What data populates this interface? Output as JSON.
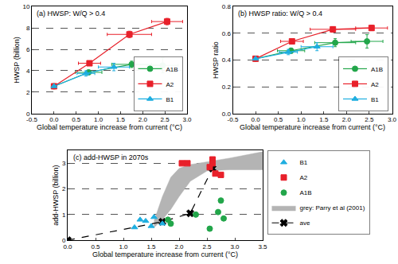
{
  "chart_data": [
    {
      "type": "line",
      "title": "(a) HWSP: W/Q > 0.4",
      "x_label": "Global temperature increase from current (°C)",
      "y_label": "HWSP (billion)",
      "xlim": [
        -0.5,
        3
      ],
      "xticks": [
        -0.5,
        {
          "value": 0,
          "label": "0.0"
        },
        0.5,
        {
          "value": 1,
          "label": "1.0"
        },
        1.5,
        {
          "value": 2,
          "label": "2.0"
        },
        2.5,
        {
          "value": 3,
          "label": "3.0"
        }
      ],
      "ylim": [
        0,
        10
      ],
      "yticks": [
        0,
        2,
        4,
        6,
        8,
        10
      ],
      "grid": "y",
      "legend": "lower right",
      "series": [
        {
          "name": "A1B",
          "color": "#22a64a",
          "marker": "circle",
          "x": [
            0,
            0.78,
            1.75,
            2.45
          ],
          "values": [
            2.55,
            3.85,
            4.6,
            4.5
          ],
          "x_err": [
            0,
            0.3,
            0.45,
            0.35
          ],
          "y_err": [
            0,
            0.2,
            0.3,
            0.7
          ]
        },
        {
          "name": "A2",
          "color": "#e8202a",
          "marker": "square",
          "x": [
            0,
            0.8,
            1.7,
            2.55
          ],
          "values": [
            2.55,
            4.7,
            7.4,
            8.6
          ],
          "x_err": [
            0,
            0.25,
            0.5,
            0.35
          ],
          "y_err": [
            0,
            0.2,
            0.3,
            0.3
          ]
        },
        {
          "name": "B1",
          "color": "#1eaee0",
          "marker": "triangle",
          "x": [
            0,
            0.72,
            1.35
          ],
          "values": [
            2.55,
            3.75,
            4.35
          ],
          "x_err": [
            0,
            0.2,
            0.35
          ],
          "y_err": [
            0,
            0.25,
            0.35
          ]
        }
      ]
    },
    {
      "type": "line",
      "title": "(b) HWSP ratio: W/Q > 0.4",
      "x_label": "Global temperature increase from current (°C)",
      "y_label": "HWSP ratio",
      "xlim": [
        -0.5,
        3
      ],
      "xticks": [
        -0.5,
        {
          "value": 0,
          "label": "0.0"
        },
        0.5,
        {
          "value": 1,
          "label": "1.0"
        },
        1.5,
        {
          "value": 2,
          "label": "2.0"
        },
        2.5,
        {
          "value": 3,
          "label": "3.0"
        }
      ],
      "ylim": [
        0,
        0.8
      ],
      "yticks": [
        {
          "value": 0,
          "label": "0.0"
        },
        0.2,
        0.4,
        0.6,
        0.8
      ],
      "grid": "y",
      "legend": "lower right",
      "series": [
        {
          "name": "A1B",
          "color": "#22a64a",
          "marker": "circle",
          "x": [
            0,
            0.78,
            1.75,
            2.45
          ],
          "values": [
            0.41,
            0.47,
            0.53,
            0.54
          ],
          "x_err": [
            0,
            0.3,
            0.45,
            0.35
          ],
          "y_err": [
            0,
            0.02,
            0.03,
            0.05
          ]
        },
        {
          "name": "A2",
          "color": "#e8202a",
          "marker": "square",
          "x": [
            0,
            0.8,
            1.7,
            2.55
          ],
          "values": [
            0.41,
            0.54,
            0.63,
            0.64
          ],
          "x_err": [
            0,
            0.25,
            0.5,
            0.35
          ],
          "y_err": [
            0,
            0.02,
            0.02,
            0.02
          ]
        },
        {
          "name": "B1",
          "color": "#1eaee0",
          "marker": "triangle",
          "x": [
            0,
            0.72,
            1.35
          ],
          "values": [
            0.41,
            0.46,
            0.5
          ],
          "x_err": [
            0,
            0.2,
            0.35
          ],
          "y_err": [
            0,
            0.02,
            0.03
          ]
        }
      ]
    },
    {
      "type": "scatter",
      "title": "(c) add-HWSP in 2070s",
      "x_label": "Global temperature increase from current (°C)",
      "y_label": "add-HWSP (billion)",
      "xlim": [
        0,
        3.5
      ],
      "xticks": [
        {
          "value": 0,
          "label": "0.0"
        },
        0.5,
        {
          "value": 1,
          "label": "1.0"
        },
        1.5,
        {
          "value": 2,
          "label": "2.0"
        },
        2.5,
        {
          "value": 3,
          "label": "3.0"
        },
        3.5
      ],
      "ylim": [
        0,
        3.5
      ],
      "yticks": [
        0,
        1,
        2,
        3
      ],
      "grid": "y",
      "legend": "right",
      "series": [
        {
          "name": "ave",
          "type": "line",
          "color": "#000000",
          "marker": "x",
          "line_style": "dashed",
          "x": [
            0,
            1.7,
            2.2,
            2.6
          ],
          "values": [
            0,
            0.72,
            1.05,
            2.8
          ]
        },
        {
          "name": "grey: Parry et al (2001)",
          "type": "band",
          "color": "#b4b4b4",
          "x": [
            1.55,
            1.7,
            1.85,
            2.0,
            2.2,
            2.5,
            2.9,
            3.5
          ],
          "lower": [
            0.5,
            0.8,
            1.2,
            1.7,
            2.3,
            2.7,
            2.75,
            2.75
          ],
          "upper": [
            0.75,
            1.7,
            2.45,
            2.8,
            2.95,
            3.05,
            3.2,
            3.45
          ]
        },
        {
          "name": "A1B",
          "color": "#22a64a",
          "marker": "circle",
          "x": [
            1.8,
            1.85,
            2.3,
            2.55,
            2.7,
            2.75,
            2.8
          ],
          "values": [
            0.8,
            0.65,
            1.0,
            0.45,
            1.1,
            1.55,
            0.85
          ]
        },
        {
          "name": "A2",
          "color": "#e8202a",
          "marker": "square",
          "x": [
            2.05,
            2.15,
            2.55,
            2.6,
            2.6,
            2.65,
            2.75
          ],
          "values": [
            3.0,
            3.0,
            2.85,
            3.15,
            3.0,
            2.6,
            2.55
          ]
        },
        {
          "name": "B1",
          "color": "#1eaee0",
          "marker": "triangle",
          "x": [
            1.2,
            1.3,
            1.4,
            1.5,
            1.55,
            1.7
          ],
          "values": [
            0.5,
            0.8,
            0.75,
            0.55,
            0.9,
            0.65
          ]
        }
      ]
    }
  ]
}
